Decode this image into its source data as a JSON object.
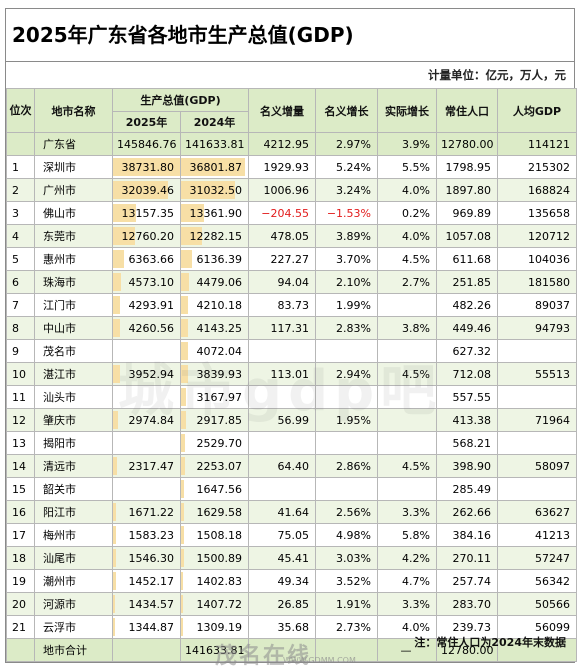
{
  "title": "2025年广东省各地市生产总值(GDP)",
  "unit_note": "计量单位：亿元，万人，元",
  "headers": {
    "rank": "位次",
    "city": "地市名称",
    "gdp": "生产总值(GDP)",
    "y2025": "2025年",
    "y2024": "2024年",
    "nominal_increase": "名义增量",
    "nominal_growth": "名义增长",
    "real_growth": "实际增长",
    "population": "常住人口",
    "per_capita": "人均GDP"
  },
  "province": {
    "name": "广东省",
    "gdp2025": "145846.76",
    "gdp2024": "141633.81",
    "increase": "4212.95",
    "nominal": "2.97%",
    "real": "3.9%",
    "pop": "12780.00",
    "percap": "114121"
  },
  "rows": [
    {
      "rank": "1",
      "name": "深圳市",
      "gdp2025": "38731.80",
      "gdp2024": "36801.87",
      "increase": "1929.93",
      "nominal": "5.24%",
      "real": "5.5%",
      "pop": "1798.95",
      "percap": "215302"
    },
    {
      "rank": "2",
      "name": "广州市",
      "gdp2025": "32039.46",
      "gdp2024": "31032.50",
      "increase": "1006.96",
      "nominal": "3.24%",
      "real": "4.0%",
      "pop": "1897.80",
      "percap": "168824"
    },
    {
      "rank": "3",
      "name": "佛山市",
      "gdp2025": "13157.35",
      "gdp2024": "13361.90",
      "increase": "−204.55",
      "nominal": "−1.53%",
      "real": "0.2%",
      "pop": "969.89",
      "percap": "135658",
      "negative": true
    },
    {
      "rank": "4",
      "name": "东莞市",
      "gdp2025": "12760.20",
      "gdp2024": "12282.15",
      "increase": "478.05",
      "nominal": "3.89%",
      "real": "4.0%",
      "pop": "1057.08",
      "percap": "120712"
    },
    {
      "rank": "5",
      "name": "惠州市",
      "gdp2025": "6363.66",
      "gdp2024": "6136.39",
      "increase": "227.27",
      "nominal": "3.70%",
      "real": "4.5%",
      "pop": "611.68",
      "percap": "104036"
    },
    {
      "rank": "6",
      "name": "珠海市",
      "gdp2025": "4573.10",
      "gdp2024": "4479.06",
      "increase": "94.04",
      "nominal": "2.10%",
      "real": "2.7%",
      "pop": "251.85",
      "percap": "181580"
    },
    {
      "rank": "7",
      "name": "江门市",
      "gdp2025": "4293.91",
      "gdp2024": "4210.18",
      "increase": "83.73",
      "nominal": "1.99%",
      "real": "",
      "pop": "482.26",
      "percap": "89037"
    },
    {
      "rank": "8",
      "name": "中山市",
      "gdp2025": "4260.56",
      "gdp2024": "4143.25",
      "increase": "117.31",
      "nominal": "2.83%",
      "real": "3.8%",
      "pop": "449.46",
      "percap": "94793"
    },
    {
      "rank": "9",
      "name": "茂名市",
      "gdp2025": "",
      "gdp2024": "4072.04",
      "increase": "",
      "nominal": "",
      "real": "",
      "pop": "627.32",
      "percap": ""
    },
    {
      "rank": "10",
      "name": "湛江市",
      "gdp2025": "3952.94",
      "gdp2024": "3839.93",
      "increase": "113.01",
      "nominal": "2.94%",
      "real": "4.5%",
      "pop": "712.08",
      "percap": "55513"
    },
    {
      "rank": "11",
      "name": "汕头市",
      "gdp2025": "",
      "gdp2024": "3167.97",
      "increase": "",
      "nominal": "",
      "real": "",
      "pop": "557.55",
      "percap": ""
    },
    {
      "rank": "12",
      "name": "肇庆市",
      "gdp2025": "2974.84",
      "gdp2024": "2917.85",
      "increase": "56.99",
      "nominal": "1.95%",
      "real": "",
      "pop": "413.38",
      "percap": "71964"
    },
    {
      "rank": "13",
      "name": "揭阳市",
      "gdp2025": "",
      "gdp2024": "2529.70",
      "increase": "",
      "nominal": "",
      "real": "",
      "pop": "568.21",
      "percap": ""
    },
    {
      "rank": "14",
      "name": "清远市",
      "gdp2025": "2317.47",
      "gdp2024": "2253.07",
      "increase": "64.40",
      "nominal": "2.86%",
      "real": "4.5%",
      "pop": "398.90",
      "percap": "58097"
    },
    {
      "rank": "15",
      "name": "韶关市",
      "gdp2025": "",
      "gdp2024": "1647.56",
      "increase": "",
      "nominal": "",
      "real": "",
      "pop": "285.49",
      "percap": ""
    },
    {
      "rank": "16",
      "name": "阳江市",
      "gdp2025": "1671.22",
      "gdp2024": "1629.58",
      "increase": "41.64",
      "nominal": "2.56%",
      "real": "3.3%",
      "pop": "262.66",
      "percap": "63627"
    },
    {
      "rank": "17",
      "name": "梅州市",
      "gdp2025": "1583.23",
      "gdp2024": "1508.18",
      "increase": "75.05",
      "nominal": "4.98%",
      "real": "5.8%",
      "pop": "384.16",
      "percap": "41213"
    },
    {
      "rank": "18",
      "name": "汕尾市",
      "gdp2025": "1546.30",
      "gdp2024": "1500.89",
      "increase": "45.41",
      "nominal": "3.03%",
      "real": "4.2%",
      "pop": "270.11",
      "percap": "57247"
    },
    {
      "rank": "19",
      "name": "潮州市",
      "gdp2025": "1452.17",
      "gdp2024": "1402.83",
      "increase": "49.34",
      "nominal": "3.52%",
      "real": "4.7%",
      "pop": "257.74",
      "percap": "56342"
    },
    {
      "rank": "20",
      "name": "河源市",
      "gdp2025": "1434.57",
      "gdp2024": "1407.72",
      "increase": "26.85",
      "nominal": "1.91%",
      "real": "3.3%",
      "pop": "283.70",
      "percap": "50566"
    },
    {
      "rank": "21",
      "name": "云浮市",
      "gdp2025": "1344.87",
      "gdp2024": "1309.19",
      "increase": "35.68",
      "nominal": "2.73%",
      "real": "4.0%",
      "pop": "239.73",
      "percap": "56099"
    }
  ],
  "total": {
    "label": "地市合计",
    "gdp2024": "141633.81",
    "dash": "—",
    "pop": "12780.00"
  },
  "footnote": "注：常住人口为2024年末数据",
  "watermark": "城市gdp吧",
  "logo": {
    "mark": "茂名在线",
    "url": "WWW.GDMM.COM"
  },
  "colors": {
    "header_bg": "#dcebc7",
    "bar_fill": "#f7dfa6",
    "negative": "#e21b1b"
  }
}
